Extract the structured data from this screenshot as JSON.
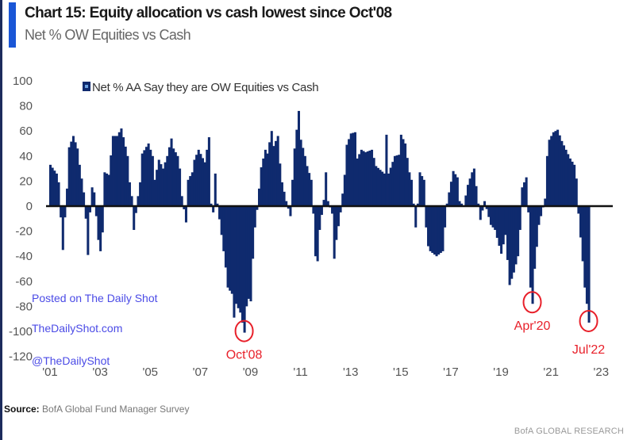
{
  "header": {
    "title": "Chart 15: Equity allocation vs cash lowest since Oct'08",
    "subtitle": "Net % OW Equities vs Cash"
  },
  "footer": {
    "source_label": "Source:",
    "source_text": "BofA Global Fund Manager Survey",
    "credit": "BofA GLOBAL RESEARCH"
  },
  "watermarks": [
    "Posted on The Daily Shot",
    "TheDailyShot.com",
    "@TheDailyShot"
  ],
  "colors": {
    "bar": "#0f2a6e",
    "annotation": "#e8202a",
    "accent": "#1a56d6",
    "watermark": "#4b4be6"
  },
  "chart_data": {
    "type": "bar",
    "title": "Chart 15: Equity allocation vs cash lowest since Oct'08",
    "subtitle": "Net % OW Equities vs Cash",
    "xlabel": "",
    "ylabel": "",
    "ylim": [
      -120,
      100
    ],
    "yticks": [
      "100",
      "80",
      "60",
      "40",
      "20",
      "0",
      "-20",
      "-40",
      "-60",
      "-80",
      "-100",
      "-120"
    ],
    "xticks": [
      "'01",
      "'03",
      "'05",
      "'07",
      "'09",
      "'11",
      "'13",
      "'15",
      "'17",
      "'19",
      "'21",
      "'23"
    ],
    "grid": false,
    "legend": {
      "position": "top-left",
      "entries": [
        "Net % AA Say they are OW Equities vs Cash"
      ]
    },
    "series": [
      {
        "name": "Net % AA Say they are OW Equities vs Cash",
        "frequency": "monthly",
        "start": "2001-01",
        "end": "2022-07",
        "points_month_index_value": [
          [
            0,
            33
          ],
          [
            3,
            26
          ],
          [
            4,
            19
          ],
          [
            5,
            -9
          ],
          [
            6,
            -35
          ],
          [
            7,
            -9
          ],
          [
            8,
            14
          ],
          [
            9,
            47
          ],
          [
            11,
            56
          ],
          [
            13,
            46
          ],
          [
            14,
            33
          ],
          [
            16,
            11
          ],
          [
            17,
            -10
          ],
          [
            18,
            -39
          ],
          [
            19,
            -5
          ],
          [
            20,
            15
          ],
          [
            21,
            11
          ],
          [
            23,
            -27
          ],
          [
            24,
            -36
          ],
          [
            25,
            -21
          ],
          [
            26,
            27
          ],
          [
            28,
            25
          ],
          [
            30,
            56
          ],
          [
            32,
            56
          ],
          [
            34,
            62
          ],
          [
            35,
            55
          ],
          [
            37,
            40
          ],
          [
            38,
            19
          ],
          [
            39,
            8
          ],
          [
            40,
            -19
          ],
          [
            42,
            8
          ],
          [
            43,
            19
          ],
          [
            44,
            42
          ],
          [
            47,
            50
          ],
          [
            49,
            40
          ],
          [
            50,
            21
          ],
          [
            52,
            37
          ],
          [
            54,
            30
          ],
          [
            56,
            40
          ],
          [
            58,
            54
          ],
          [
            59,
            46
          ],
          [
            61,
            40
          ],
          [
            62,
            30
          ],
          [
            63,
            8
          ],
          [
            65,
            -13
          ],
          [
            66,
            21
          ],
          [
            68,
            27
          ],
          [
            69,
            37
          ],
          [
            71,
            45
          ],
          [
            74,
            35
          ],
          [
            76,
            55
          ],
          [
            77,
            2
          ],
          [
            78,
            -5
          ],
          [
            79,
            26
          ],
          [
            80,
            2
          ],
          [
            82,
            -23
          ],
          [
            84,
            -49
          ],
          [
            85,
            -65
          ],
          [
            87,
            -70
          ],
          [
            88,
            -89
          ],
          [
            89,
            -78
          ],
          [
            91,
            -85
          ],
          [
            93,
            -101
          ],
          [
            94,
            -80
          ],
          [
            95,
            -74
          ],
          [
            96,
            -76
          ],
          [
            97,
            -42
          ],
          [
            98,
            -17
          ],
          [
            99,
            -3
          ],
          [
            101,
            31
          ],
          [
            103,
            45
          ],
          [
            104,
            42
          ],
          [
            106,
            60
          ],
          [
            107,
            48
          ],
          [
            109,
            56
          ],
          [
            110,
            34
          ],
          [
            111,
            19
          ],
          [
            113,
            4
          ],
          [
            115,
            -8
          ],
          [
            116,
            21
          ],
          [
            117,
            46
          ],
          [
            119,
            76
          ],
          [
            120,
            53
          ],
          [
            122,
            40
          ],
          [
            123,
            32
          ],
          [
            125,
            21
          ],
          [
            126,
            -6
          ],
          [
            127,
            -40
          ],
          [
            128,
            -44
          ],
          [
            129,
            -19
          ],
          [
            131,
            5
          ],
          [
            132,
            27
          ],
          [
            133,
            4
          ],
          [
            135,
            -6
          ],
          [
            136,
            -42
          ],
          [
            137,
            -27
          ],
          [
            139,
            -5
          ],
          [
            141,
            25
          ],
          [
            142,
            49
          ],
          [
            144,
            58
          ],
          [
            146,
            59
          ],
          [
            147,
            38
          ],
          [
            149,
            45
          ],
          [
            151,
            43
          ],
          [
            154,
            45
          ],
          [
            156,
            32
          ],
          [
            160,
            26
          ],
          [
            161,
            57
          ],
          [
            162,
            26
          ],
          [
            165,
            40
          ],
          [
            167,
            41
          ],
          [
            168,
            57
          ],
          [
            170,
            50
          ],
          [
            172,
            27
          ],
          [
            173,
            21
          ],
          [
            175,
            -17
          ],
          [
            176,
            2
          ],
          [
            177,
            27
          ],
          [
            179,
            21
          ],
          [
            180,
            -17
          ],
          [
            181,
            -32
          ],
          [
            182,
            -36
          ],
          [
            185,
            -40
          ],
          [
            188,
            -36
          ],
          [
            190,
            2
          ],
          [
            191,
            11
          ],
          [
            193,
            28
          ],
          [
            195,
            23
          ],
          [
            196,
            4
          ],
          [
            198,
            0
          ],
          [
            200,
            17
          ],
          [
            202,
            27
          ],
          [
            203,
            30
          ],
          [
            205,
            2
          ],
          [
            206,
            -11
          ],
          [
            208,
            4
          ],
          [
            211,
            -15
          ],
          [
            213,
            -19
          ],
          [
            216,
            -38
          ],
          [
            218,
            -23
          ],
          [
            220,
            -63
          ],
          [
            222,
            -53
          ],
          [
            224,
            -40
          ],
          [
            225,
            -19
          ],
          [
            226,
            15
          ],
          [
            228,
            23
          ],
          [
            229,
            -5
          ],
          [
            230,
            -65
          ],
          [
            231,
            -78
          ],
          [
            232,
            -50
          ],
          [
            234,
            -15
          ],
          [
            237,
            6
          ],
          [
            238,
            40
          ],
          [
            239,
            53
          ],
          [
            241,
            59
          ],
          [
            243,
            61
          ],
          [
            245,
            52
          ],
          [
            247,
            45
          ],
          [
            249,
            38
          ],
          [
            251,
            33
          ],
          [
            252,
            22
          ],
          [
            253,
            -6
          ],
          [
            255,
            -44
          ],
          [
            256,
            -65
          ],
          [
            257,
            -78
          ],
          [
            258,
            -93
          ]
        ]
      }
    ],
    "annotations": [
      {
        "label": "Oct'08",
        "month_index": 93,
        "value": -101
      },
      {
        "label": "Apr'20",
        "month_index": 231,
        "value": -78
      },
      {
        "label": "Jul'22",
        "month_index": 258,
        "value": -93
      }
    ]
  }
}
